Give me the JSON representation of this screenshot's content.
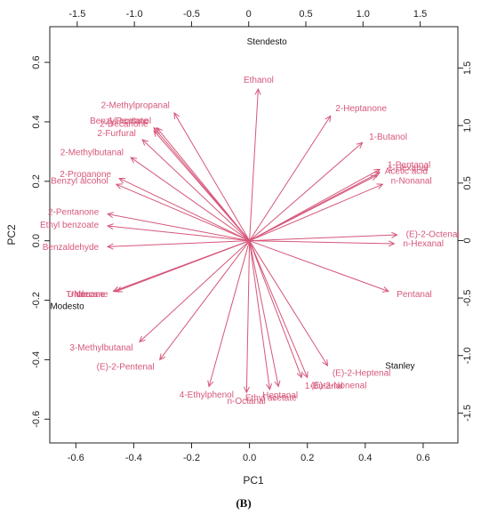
{
  "chart_data": {
    "type": "biplot",
    "xlabel": "PC1",
    "ylabel": "PC2",
    "caption": "(B)",
    "xlim": [
      -0.69,
      0.72
    ],
    "ylim": [
      -0.68,
      0.72
    ],
    "top_axis_lim": [
      -1.74,
      1.83
    ],
    "right_axis_lim": [
      -1.76,
      1.86
    ],
    "bottom_ticks": [
      "-0.6",
      "-0.4",
      "-0.2",
      "0.0",
      "0.2",
      "0.4",
      "0.6"
    ],
    "left_ticks": [
      "-0.6",
      "-0.4",
      "-0.2",
      "0.0",
      "0.2",
      "0.4",
      "0.6"
    ],
    "top_ticks": [
      "-1.5",
      "-1.0",
      "-0.5",
      "0",
      "0.5",
      "1.0",
      "1.5"
    ],
    "right_ticks": [
      "-1.5",
      "-1.0",
      "-0.5",
      "0",
      "0.5",
      "1.0",
      "1.5"
    ],
    "grid": false,
    "colors": {
      "vector": "#d6577a",
      "observation": "#111111",
      "axis": "#222222"
    },
    "observations": [
      {
        "name": "Stendesto",
        "pc1": 0.06,
        "pc2": 0.66
      },
      {
        "name": "Modesto",
        "pc1": -0.63,
        "pc2": -0.23
      },
      {
        "name": "Stanley",
        "pc1": 0.52,
        "pc2": -0.43
      }
    ],
    "vectors": [
      {
        "name": "Ethanol",
        "pc1": 0.03,
        "pc2": 0.51
      },
      {
        "name": "1-Pentanol",
        "pc1": -0.32,
        "pc2": 0.38
      },
      {
        "name": "Benzyl acetate",
        "pc1": -0.33,
        "pc2": 0.38
      },
      {
        "name": "2-Decanone",
        "pc1": -0.33,
        "pc2": 0.37
      },
      {
        "name": "2-Heptanone",
        "pc1": 0.28,
        "pc2": 0.42
      },
      {
        "name": "2-Methylpropanal",
        "pc1": -0.26,
        "pc2": 0.43
      },
      {
        "name": "1-Butanol",
        "pc1": 0.39,
        "pc2": 0.33
      },
      {
        "name": "2-Furfural",
        "pc1": -0.37,
        "pc2": 0.34
      },
      {
        "name": "1-Pentanal",
        "pc1": 0.45,
        "pc2": 0.24
      },
      {
        "name": "1-Hexanal",
        "pc1": 0.45,
        "pc2": 0.23
      },
      {
        "name": "Acetic acid",
        "pc1": 0.44,
        "pc2": 0.22
      },
      {
        "name": "n-Nonanal",
        "pc1": 0.46,
        "pc2": 0.19
      },
      {
        "name": "2-Methylbutanal",
        "pc1": -0.41,
        "pc2": 0.28
      },
      {
        "name": "2-Propanone",
        "pc1": -0.45,
        "pc2": 0.21
      },
      {
        "name": "Benzyl alcohol",
        "pc1": -0.46,
        "pc2": 0.19
      },
      {
        "name": "2-Pentanone",
        "pc1": -0.49,
        "pc2": 0.09
      },
      {
        "name": "Ethyl benzoate",
        "pc1": -0.49,
        "pc2": 0.05
      },
      {
        "name": "(E)-2-Octenal",
        "pc1": 0.51,
        "pc2": 0.02
      },
      {
        "name": "n-Hexanal",
        "pc1": 0.5,
        "pc2": -0.01
      },
      {
        "name": "Benzaldehyde",
        "pc1": -0.49,
        "pc2": -0.02
      },
      {
        "name": "Pentanal",
        "pc1": 0.48,
        "pc2": -0.17
      },
      {
        "name": "Nonane",
        "pc1": -0.47,
        "pc2": -0.17
      },
      {
        "name": "Undecane",
        "pc1": -0.46,
        "pc2": -0.17
      },
      {
        "name": "Tridecane",
        "pc1": -0.47,
        "pc2": -0.17
      },
      {
        "name": "3-Methylbutanal",
        "pc1": -0.38,
        "pc2": -0.34
      },
      {
        "name": "(E)-2-Pentenal",
        "pc1": -0.31,
        "pc2": -0.4
      },
      {
        "name": "4-Ethylphenol",
        "pc1": -0.14,
        "pc2": -0.49
      },
      {
        "name": "n-Octanal",
        "pc1": -0.01,
        "pc2": -0.51
      },
      {
        "name": "Ethyl acetate",
        "pc1": 0.07,
        "pc2": -0.5
      },
      {
        "name": "Heptanal",
        "pc1": 0.1,
        "pc2": -0.49
      },
      {
        "name": "1-Butanal",
        "pc1": 0.18,
        "pc2": -0.46
      },
      {
        "name": "(E)-2-Nonenal",
        "pc1": 0.2,
        "pc2": -0.46
      },
      {
        "name": "(E)-2-Heptenal",
        "pc1": 0.27,
        "pc2": -0.42
      }
    ]
  }
}
